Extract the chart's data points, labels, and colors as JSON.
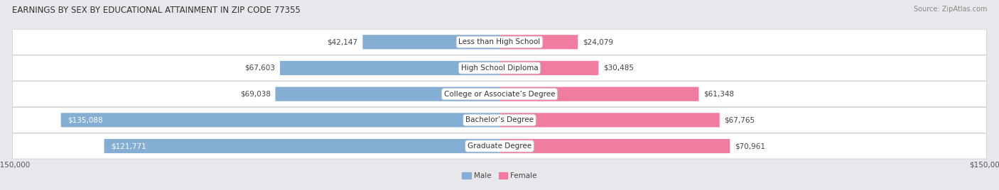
{
  "title": "EARNINGS BY SEX BY EDUCATIONAL ATTAINMENT IN ZIP CODE 77355",
  "source": "Source: ZipAtlas.com",
  "categories": [
    "Less than High School",
    "High School Diploma",
    "College or Associate’s Degree",
    "Bachelor’s Degree",
    "Graduate Degree"
  ],
  "male_values": [
    42147,
    67603,
    69038,
    135088,
    121771
  ],
  "female_values": [
    24079,
    30485,
    61348,
    67765,
    70961
  ],
  "male_color": "#85aed4",
  "female_color": "#f07ca0",
  "row_bg_color": "#ffffff",
  "row_border_color": "#d0d0d8",
  "background_color": "#e8e8ec",
  "max_value": 150000,
  "title_fontsize": 8.5,
  "source_fontsize": 7.0,
  "label_fontsize": 7.5,
  "value_fontsize": 7.5,
  "tick_fontsize": 7.5,
  "legend_fontsize": 7.5,
  "bar_height": 0.55,
  "label_threshold": 100000
}
